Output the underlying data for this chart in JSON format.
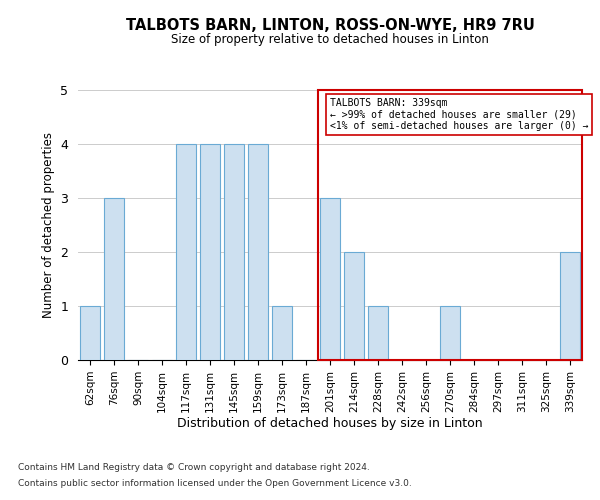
{
  "title": "TALBOTS BARN, LINTON, ROSS-ON-WYE, HR9 7RU",
  "subtitle": "Size of property relative to detached houses in Linton",
  "xlabel": "Distribution of detached houses by size in Linton",
  "ylabel": "Number of detached properties",
  "categories": [
    "62sqm",
    "76sqm",
    "90sqm",
    "104sqm",
    "117sqm",
    "131sqm",
    "145sqm",
    "159sqm",
    "173sqm",
    "187sqm",
    "201sqm",
    "214sqm",
    "228sqm",
    "242sqm",
    "256sqm",
    "270sqm",
    "284sqm",
    "297sqm",
    "311sqm",
    "325sqm",
    "339sqm"
  ],
  "values": [
    1,
    3,
    0,
    0,
    4,
    4,
    4,
    4,
    1,
    0,
    3,
    2,
    1,
    0,
    0,
    1,
    0,
    0,
    0,
    0,
    2
  ],
  "bar_color": "#cde0f0",
  "bar_edge_color": "#6aaad4",
  "highlight_box_color": "#cc0000",
  "annotation_title": "TALBOTS BARN: 339sqm",
  "annotation_line1": "← >99% of detached houses are smaller (29)",
  "annotation_line2": "<1% of semi-detached houses are larger (0) →",
  "ylim": [
    0,
    5
  ],
  "yticks": [
    0,
    1,
    2,
    3,
    4,
    5
  ],
  "footnote1": "Contains HM Land Registry data © Crown copyright and database right 2024.",
  "footnote2": "Contains public sector information licensed under the Open Government Licence v3.0.",
  "bg_color": "#ffffff",
  "grid_color": "#cccccc"
}
